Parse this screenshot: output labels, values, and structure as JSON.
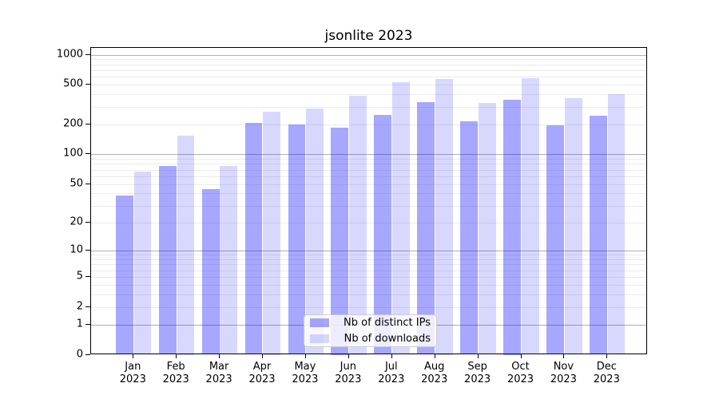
{
  "figure": {
    "title": "jsonlite 2023"
  },
  "chart_data": {
    "type": "bar",
    "title": "jsonlite 2023",
    "categories": [
      "Jan 2023",
      "Feb 2023",
      "Mar 2023",
      "Apr 2023",
      "May 2023",
      "Jun 2023",
      "Jul 2023",
      "Aug 2023",
      "Sep 2023",
      "Oct 2023",
      "Nov 2023",
      "Dec 2023"
    ],
    "x_tick_month": [
      "Jan",
      "Feb",
      "Mar",
      "Apr",
      "May",
      "Jun",
      "Jul",
      "Aug",
      "Sep",
      "Oct",
      "Nov",
      "Dec"
    ],
    "x_tick_year": "2023",
    "series": [
      {
        "name": "Nb of distinct IPs",
        "color": "rgba(0,0,255,0.345)",
        "values": [
          38,
          76,
          44,
          206,
          201,
          187,
          250,
          333,
          216,
          353,
          195,
          244
        ]
      },
      {
        "name": "Nb of downloads",
        "color": "rgba(0,0,255,0.152)",
        "values": [
          67,
          154,
          76,
          268,
          290,
          387,
          533,
          575,
          330,
          580,
          367,
          404
        ]
      }
    ],
    "xlabel": "",
    "ylabel": "",
    "yscale": "log1p",
    "ylim": [
      0,
      1160
    ],
    "y_tick_labels": [
      1000,
      500,
      200,
      100,
      50,
      20,
      10,
      5,
      2,
      1,
      0
    ],
    "y_major_gridlines": [
      1,
      10,
      100,
      1000
    ],
    "y_minor_gridlines": [
      2,
      3,
      4,
      5,
      6,
      7,
      8,
      9,
      20,
      30,
      40,
      50,
      60,
      70,
      80,
      90,
      200,
      300,
      400,
      500,
      600,
      700,
      800,
      900
    ],
    "grid": "on",
    "legend_position": "lower center"
  }
}
